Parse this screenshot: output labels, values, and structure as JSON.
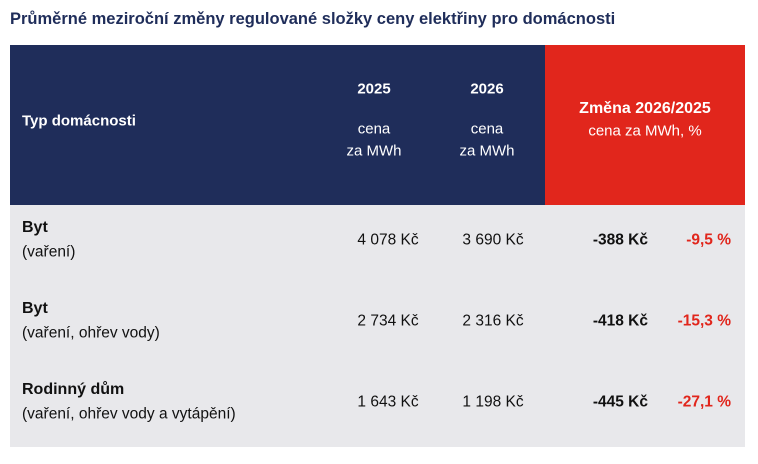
{
  "title": "Průměrné meziroční změny regulované složky ceny elektřiny pro domácnosti",
  "table": {
    "columns": [
      {
        "label": "Typ domácnosti"
      },
      {
        "label": "2025",
        "sublabel": [
          "cena",
          "za MWh"
        ]
      },
      {
        "label": "2026",
        "sublabel": [
          "cena",
          "za MWh"
        ]
      },
      {
        "label": "Změna 2026/2025",
        "sublabel": "cena za MWh, %"
      }
    ],
    "rows": [
      {
        "name": "Byt",
        "detail": "(vaření)",
        "cells": [
          "4 078 Kč",
          "3 690 Kč",
          "-388 Kč",
          "-9,5 %"
        ]
      },
      {
        "name": "Byt",
        "detail": "(vaření, ohřev vody)",
        "cells": [
          "2 734 Kč",
          "2 316 Kč",
          "-418 Kč",
          "-15,3 %"
        ]
      },
      {
        "name": "Rodinný dům",
        "detail": "(vaření, ohřev vody a vytápění)",
        "cells": [
          "1 643 Kč",
          "1 198 Kč",
          "-445 Kč",
          "-27,1 %"
        ]
      }
    ]
  }
}
